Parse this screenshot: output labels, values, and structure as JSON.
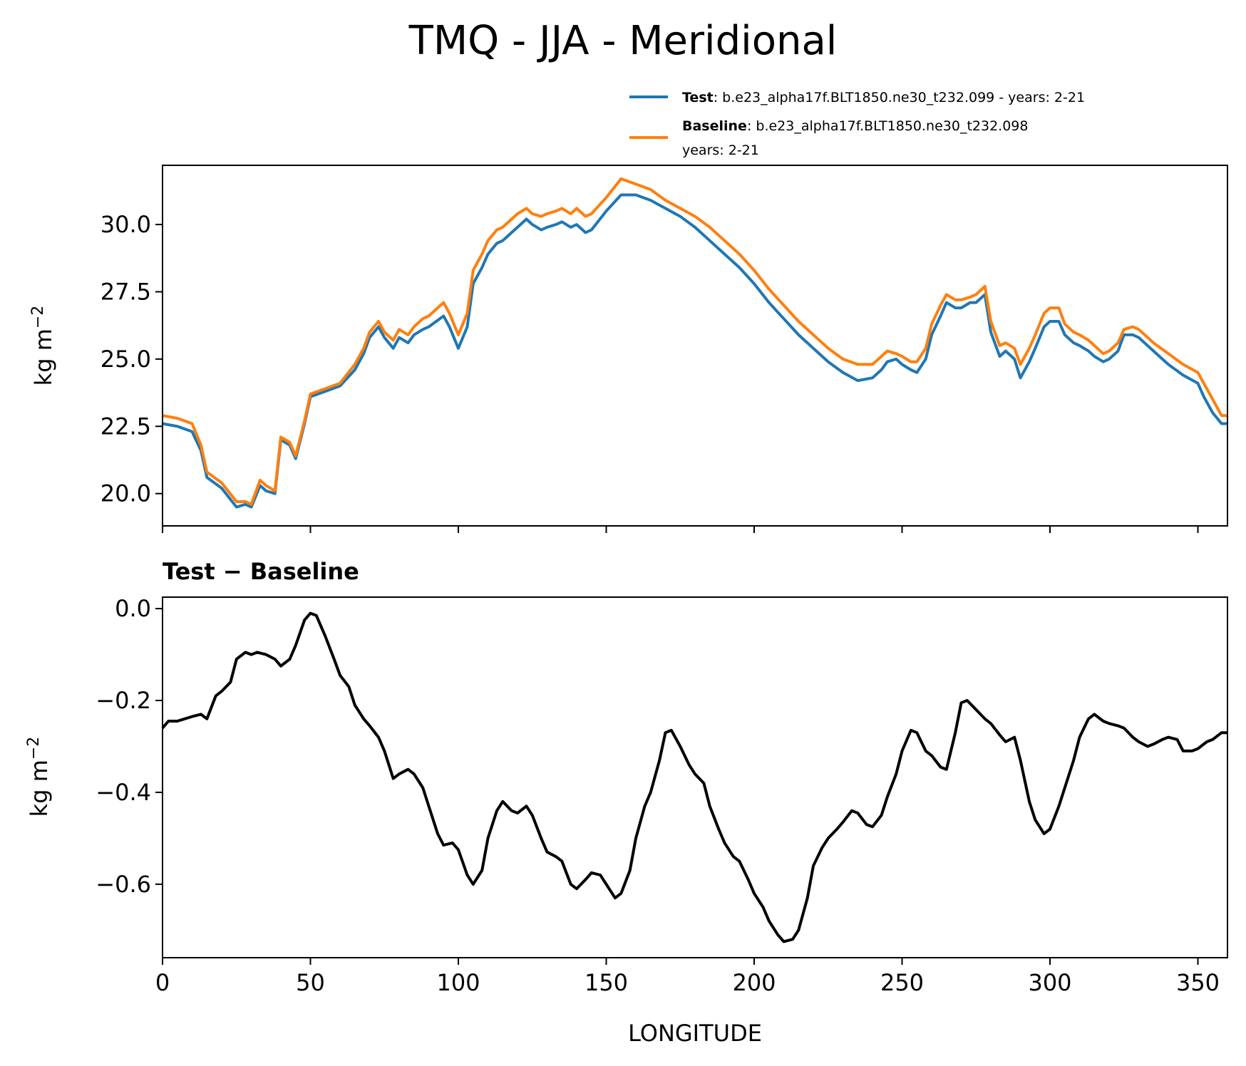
{
  "chart_data": [
    {
      "type": "line",
      "title": "TMQ - JJA - Meridional",
      "ylabel": "kg m",
      "ylabel_exp": "−2",
      "xlim": [
        0,
        360
      ],
      "ylim": [
        18.8,
        32.2
      ],
      "yticks": [
        "20.0",
        "22.5",
        "25.0",
        "27.5",
        "30.0"
      ],
      "ytick_values": [
        20.0,
        22.5,
        25.0,
        27.5,
        30.0
      ],
      "legend": {
        "placement": "top-right, above axes",
        "entries": [
          {
            "name_bold": "Test",
            "text_line1": ": b.e23_alpha17f.BLT1850.ne30_t232.099 - years: 2-21",
            "text_line2": ""
          },
          {
            "name_bold": "Baseline",
            "text_line1": ": b.e23_alpha17f.BLT1850.ne30_t232.098",
            "text_line2": "years: 2-21"
          }
        ]
      },
      "series": [
        {
          "name": "Test",
          "color": "#1f77b4",
          "x": [
            0,
            5,
            10,
            13,
            15,
            20,
            25,
            28,
            30,
            33,
            35,
            38,
            40,
            43,
            45,
            48,
            50,
            55,
            60,
            65,
            68,
            70,
            73,
            75,
            78,
            80,
            83,
            85,
            88,
            90,
            95,
            97,
            100,
            103,
            105,
            108,
            110,
            113,
            115,
            118,
            120,
            123,
            125,
            128,
            130,
            133,
            135,
            138,
            140,
            143,
            145,
            150,
            155,
            160,
            165,
            170,
            175,
            180,
            185,
            190,
            195,
            200,
            205,
            210,
            215,
            220,
            225,
            230,
            235,
            240,
            243,
            245,
            248,
            250,
            253,
            255,
            258,
            260,
            263,
            265,
            268,
            270,
            273,
            275,
            278,
            280,
            283,
            285,
            288,
            290,
            293,
            295,
            298,
            300,
            303,
            305,
            308,
            310,
            313,
            315,
            318,
            320,
            323,
            325,
            328,
            330,
            335,
            340,
            345,
            350,
            352,
            355,
            358,
            360
          ],
          "values": [
            22.6,
            22.5,
            22.3,
            21.6,
            20.6,
            20.2,
            19.5,
            19.6,
            19.5,
            20.3,
            20.1,
            20.0,
            22.0,
            21.8,
            21.3,
            22.6,
            23.6,
            23.8,
            24.0,
            24.6,
            25.2,
            25.8,
            26.2,
            25.8,
            25.4,
            25.8,
            25.6,
            25.9,
            26.1,
            26.2,
            26.6,
            26.2,
            25.4,
            26.2,
            27.8,
            28.4,
            28.9,
            29.3,
            29.4,
            29.7,
            29.9,
            30.2,
            30.0,
            29.8,
            29.9,
            30.0,
            30.1,
            29.9,
            30.0,
            29.7,
            29.8,
            30.5,
            31.1,
            31.1,
            30.9,
            30.6,
            30.3,
            29.9,
            29.4,
            28.9,
            28.4,
            27.8,
            27.1,
            26.5,
            25.9,
            25.4,
            24.9,
            24.5,
            24.2,
            24.3,
            24.6,
            24.9,
            25.0,
            24.8,
            24.6,
            24.5,
            25.0,
            25.9,
            26.6,
            27.1,
            26.9,
            26.9,
            27.1,
            27.1,
            27.4,
            26.0,
            25.1,
            25.3,
            25.0,
            24.3,
            24.9,
            25.4,
            26.2,
            26.4,
            26.4,
            25.9,
            25.6,
            25.5,
            25.3,
            25.1,
            24.9,
            25.0,
            25.3,
            25.9,
            25.9,
            25.8,
            25.3,
            24.8,
            24.4,
            24.1,
            23.6,
            23.0,
            22.6,
            22.6
          ]
        },
        {
          "name": "Baseline",
          "color": "#ff7f0e",
          "x": [
            0,
            5,
            10,
            13,
            15,
            20,
            25,
            28,
            30,
            33,
            35,
            38,
            40,
            43,
            45,
            48,
            50,
            55,
            60,
            65,
            68,
            70,
            73,
            75,
            78,
            80,
            83,
            85,
            88,
            90,
            95,
            97,
            100,
            103,
            105,
            108,
            110,
            113,
            115,
            118,
            120,
            123,
            125,
            128,
            130,
            133,
            135,
            138,
            140,
            143,
            145,
            150,
            155,
            160,
            165,
            170,
            175,
            180,
            185,
            190,
            195,
            200,
            205,
            210,
            215,
            220,
            225,
            230,
            235,
            240,
            243,
            245,
            248,
            250,
            253,
            255,
            258,
            260,
            263,
            265,
            268,
            270,
            273,
            275,
            278,
            280,
            283,
            285,
            288,
            290,
            293,
            295,
            298,
            300,
            303,
            305,
            308,
            310,
            313,
            315,
            318,
            320,
            323,
            325,
            328,
            330,
            335,
            340,
            345,
            350,
            352,
            355,
            358,
            360
          ],
          "values": [
            22.9,
            22.8,
            22.6,
            21.8,
            20.8,
            20.4,
            19.7,
            19.7,
            19.6,
            20.5,
            20.3,
            20.1,
            22.1,
            21.9,
            21.4,
            22.7,
            23.7,
            23.9,
            24.1,
            24.8,
            25.4,
            26.0,
            26.4,
            26.0,
            25.7,
            26.1,
            25.9,
            26.2,
            26.5,
            26.6,
            27.1,
            26.7,
            25.9,
            26.7,
            28.3,
            28.9,
            29.4,
            29.8,
            29.9,
            30.2,
            30.4,
            30.6,
            30.4,
            30.3,
            30.4,
            30.5,
            30.6,
            30.4,
            30.6,
            30.3,
            30.4,
            31.0,
            31.7,
            31.5,
            31.3,
            30.9,
            30.6,
            30.3,
            29.9,
            29.4,
            28.9,
            28.3,
            27.6,
            27.0,
            26.4,
            25.9,
            25.4,
            25.0,
            24.8,
            24.8,
            25.1,
            25.3,
            25.2,
            25.1,
            24.9,
            24.9,
            25.4,
            26.3,
            27.0,
            27.4,
            27.2,
            27.2,
            27.3,
            27.4,
            27.7,
            26.4,
            25.5,
            25.6,
            25.4,
            24.8,
            25.4,
            25.9,
            26.7,
            26.9,
            26.9,
            26.3,
            26.0,
            25.9,
            25.7,
            25.5,
            25.2,
            25.3,
            25.6,
            26.1,
            26.2,
            26.1,
            25.6,
            25.2,
            24.8,
            24.5,
            24.1,
            23.5,
            22.9,
            22.9
          ]
        }
      ]
    },
    {
      "type": "line",
      "title": "Test − Baseline",
      "xlabel": "LONGITUDE",
      "ylabel": "kg m",
      "ylabel_exp": "−2",
      "xlim": [
        0,
        360
      ],
      "ylim": [
        -0.76,
        0.025
      ],
      "xticks": [
        "0",
        "50",
        "100",
        "150",
        "200",
        "250",
        "300",
        "350"
      ],
      "xtick_values": [
        0,
        50,
        100,
        150,
        200,
        250,
        300,
        350
      ],
      "yticks": [
        "0.0",
        "−0.2",
        "−0.4",
        "−0.6"
      ],
      "ytick_values": [
        0.0,
        -0.2,
        -0.4,
        -0.6
      ],
      "series": [
        {
          "name": "Test − Baseline",
          "color": "#000000",
          "x": [
            0,
            2,
            5,
            10,
            13,
            15,
            18,
            20,
            23,
            25,
            28,
            30,
            32,
            35,
            38,
            40,
            43,
            45,
            48,
            50,
            52,
            55,
            58,
            60,
            63,
            65,
            68,
            70,
            73,
            75,
            78,
            80,
            83,
            85,
            88,
            90,
            93,
            95,
            98,
            100,
            103,
            105,
            108,
            110,
            113,
            115,
            118,
            120,
            123,
            125,
            128,
            130,
            133,
            135,
            138,
            140,
            143,
            145,
            148,
            150,
            153,
            155,
            158,
            160,
            163,
            165,
            168,
            170,
            172,
            175,
            178,
            180,
            183,
            185,
            188,
            190,
            193,
            195,
            198,
            200,
            203,
            205,
            208,
            210,
            213,
            215,
            218,
            220,
            223,
            225,
            228,
            230,
            233,
            235,
            238,
            240,
            243,
            245,
            248,
            250,
            253,
            255,
            258,
            260,
            263,
            265,
            268,
            270,
            272,
            275,
            278,
            280,
            283,
            285,
            288,
            290,
            293,
            295,
            298,
            300,
            303,
            305,
            308,
            310,
            313,
            315,
            318,
            320,
            323,
            325,
            328,
            330,
            333,
            335,
            338,
            340,
            343,
            345,
            348,
            350,
            353,
            355,
            358,
            360
          ],
          "values": [
            -0.26,
            -0.245,
            -0.245,
            -0.235,
            -0.23,
            -0.24,
            -0.19,
            -0.18,
            -0.16,
            -0.11,
            -0.095,
            -0.1,
            -0.095,
            -0.1,
            -0.11,
            -0.125,
            -0.11,
            -0.08,
            -0.025,
            -0.01,
            -0.015,
            -0.06,
            -0.11,
            -0.145,
            -0.17,
            -0.21,
            -0.24,
            -0.255,
            -0.28,
            -0.31,
            -0.37,
            -0.36,
            -0.35,
            -0.36,
            -0.39,
            -0.43,
            -0.49,
            -0.515,
            -0.51,
            -0.525,
            -0.58,
            -0.6,
            -0.57,
            -0.5,
            -0.44,
            -0.42,
            -0.44,
            -0.445,
            -0.43,
            -0.45,
            -0.5,
            -0.53,
            -0.54,
            -0.55,
            -0.6,
            -0.61,
            -0.59,
            -0.575,
            -0.58,
            -0.6,
            -0.63,
            -0.62,
            -0.57,
            -0.5,
            -0.43,
            -0.4,
            -0.33,
            -0.27,
            -0.265,
            -0.3,
            -0.34,
            -0.36,
            -0.38,
            -0.43,
            -0.48,
            -0.51,
            -0.54,
            -0.55,
            -0.59,
            -0.62,
            -0.65,
            -0.68,
            -0.71,
            -0.725,
            -0.72,
            -0.7,
            -0.63,
            -0.56,
            -0.52,
            -0.5,
            -0.48,
            -0.465,
            -0.44,
            -0.445,
            -0.47,
            -0.475,
            -0.45,
            -0.41,
            -0.36,
            -0.31,
            -0.265,
            -0.27,
            -0.31,
            -0.32,
            -0.345,
            -0.35,
            -0.27,
            -0.205,
            -0.2,
            -0.22,
            -0.24,
            -0.25,
            -0.275,
            -0.29,
            -0.28,
            -0.33,
            -0.42,
            -0.46,
            -0.49,
            -0.48,
            -0.43,
            -0.39,
            -0.33,
            -0.28,
            -0.24,
            -0.23,
            -0.245,
            -0.25,
            -0.255,
            -0.26,
            -0.28,
            -0.29,
            -0.3,
            -0.295,
            -0.285,
            -0.28,
            -0.285,
            -0.31,
            -0.31,
            -0.305,
            -0.29,
            -0.285,
            -0.27,
            -0.27
          ]
        }
      ]
    }
  ]
}
